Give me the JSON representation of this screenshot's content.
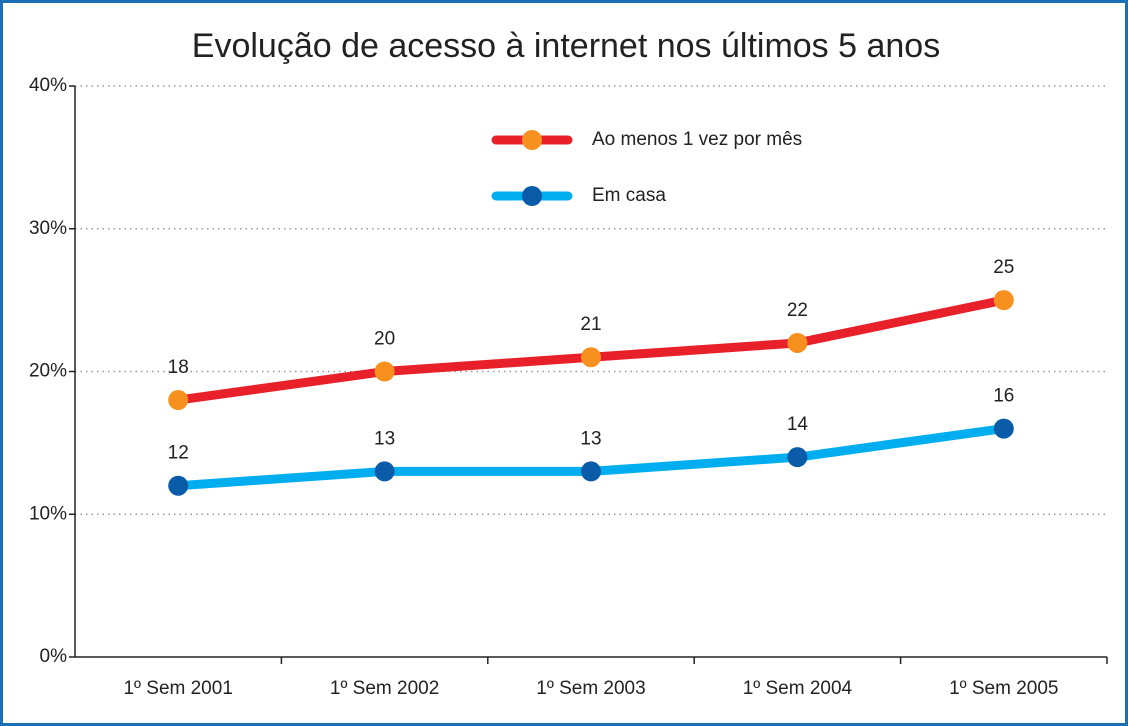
{
  "chart_data": {
    "type": "line",
    "title": "Evolução de acesso à internet nos últimos 5 anos",
    "categories": [
      "1º Sem 2001",
      "1º Sem 2002",
      "1º Sem 2003",
      "1º Sem 2004",
      "1º Sem 2005"
    ],
    "series": [
      {
        "name": "Ao menos 1 vez por mês",
        "color": "#e8202a",
        "marker_color": "#f7901e",
        "values": [
          18,
          20,
          21,
          22,
          25
        ]
      },
      {
        "name": "Em casa",
        "color": "#00aeef",
        "marker_color": "#0b5ca8",
        "values": [
          12,
          13,
          13,
          14,
          16
        ]
      }
    ],
    "ylim": [
      0,
      40
    ],
    "yticks": [
      {
        "value": 0,
        "label": "0%"
      },
      {
        "value": 10,
        "label": "10%"
      },
      {
        "value": 20,
        "label": "20%"
      },
      {
        "value": 30,
        "label": "30%"
      },
      {
        "value": 40,
        "label": "40%"
      }
    ],
    "grid": true,
    "legend": "top"
  }
}
